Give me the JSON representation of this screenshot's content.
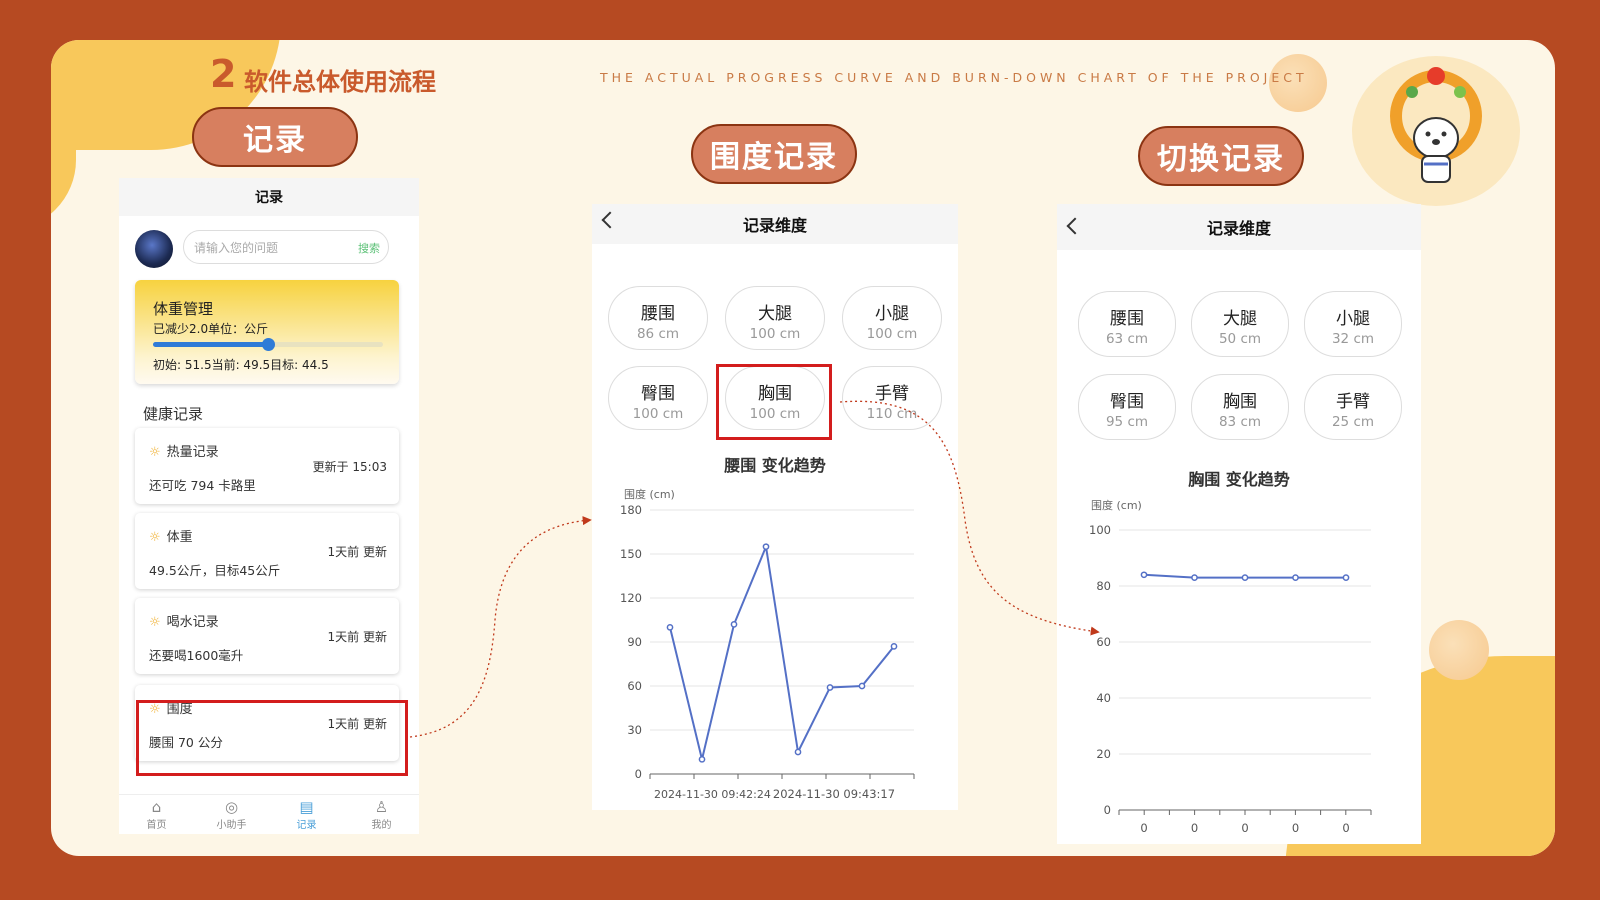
{
  "header": {
    "number": "2",
    "title": "软件总体使用流程",
    "subtitle": "THE ACTUAL PROGRESS CURVE AND BURN-DOWN CHART OF THE PROJECT"
  },
  "pills": {
    "record": "记录",
    "dimension": "围度记录",
    "switch": "切换记录"
  },
  "phone1": {
    "title": "记录",
    "search_placeholder": "请输入您的问题",
    "search_button": "搜索",
    "weight_card": {
      "title": "体重管理",
      "sub": "已减少2.0单位：公斤",
      "info": "初始: 51.5当前: 49.5目标: 44.5",
      "progress": 0.5
    },
    "section_title": "健康记录",
    "records": [
      {
        "name": "热量记录",
        "updated": "更新于 15:03",
        "desc": "还可吃 794 卡路里"
      },
      {
        "name": "体重",
        "updated": "1天前 更新",
        "desc": "49.5公斤，目标45公斤"
      },
      {
        "name": "喝水记录",
        "updated": "1天前 更新",
        "desc": "还要喝1600毫升"
      },
      {
        "name": "围度",
        "updated": "1天前 更新",
        "desc": "腰围 70 公分"
      }
    ],
    "tabs": [
      {
        "label": "首页",
        "icon": "home-icon",
        "glyph": "⌂"
      },
      {
        "label": "小助手",
        "icon": "compass-icon",
        "glyph": "◎"
      },
      {
        "label": "记录",
        "icon": "record-icon",
        "glyph": "▤"
      },
      {
        "label": "我的",
        "icon": "user-icon",
        "glyph": "♙"
      }
    ],
    "active_tab": "记录"
  },
  "phone2": {
    "title": "记录维度",
    "chips": [
      {
        "name": "腰围",
        "value": "86 cm"
      },
      {
        "name": "大腿",
        "value": "100 cm"
      },
      {
        "name": "小腿",
        "value": "100 cm"
      },
      {
        "name": "臀围",
        "value": "100 cm"
      },
      {
        "name": "胸围",
        "value": "100 cm"
      },
      {
        "name": "手臂",
        "value": "110 cm"
      }
    ],
    "chart_title": "腰围 变化趋势",
    "y_unit": "围度 (cm)",
    "x_tick_labels": [
      "2024-11-30 09:42:24",
      "2024-11-30 09:43:17"
    ]
  },
  "phone3": {
    "title": "记录维度",
    "chips": [
      {
        "name": "腰围",
        "value": "63 cm"
      },
      {
        "name": "大腿",
        "value": "50 cm"
      },
      {
        "name": "小腿",
        "value": "32 cm"
      },
      {
        "name": "臀围",
        "value": "95 cm"
      },
      {
        "name": "胸围",
        "value": "83 cm"
      },
      {
        "name": "手臂",
        "value": "25 cm"
      }
    ],
    "chart_title": "胸围 变化趋势",
    "y_unit": "围度 (cm)"
  },
  "chart_data": [
    {
      "type": "line",
      "title": "腰围 变化趋势",
      "ylabel": "围度 (cm)",
      "ylim": [
        0,
        180
      ],
      "yticks": [
        0,
        30,
        60,
        90,
        120,
        150,
        180
      ],
      "grid": true,
      "color": "#5470c6",
      "values": [
        100,
        10,
        102,
        155,
        15,
        59,
        60,
        87
      ]
    },
    {
      "type": "line",
      "title": "胸围 变化趋势",
      "ylabel": "围度 (cm)",
      "ylim": [
        0,
        100
      ],
      "yticks": [
        0,
        20,
        40,
        60,
        80,
        100
      ],
      "x_tick_labels": [
        "0",
        "0",
        "0",
        "0",
        "0"
      ],
      "grid": true,
      "color": "#5470c6",
      "values": [
        84,
        83,
        83,
        83,
        83
      ]
    }
  ]
}
